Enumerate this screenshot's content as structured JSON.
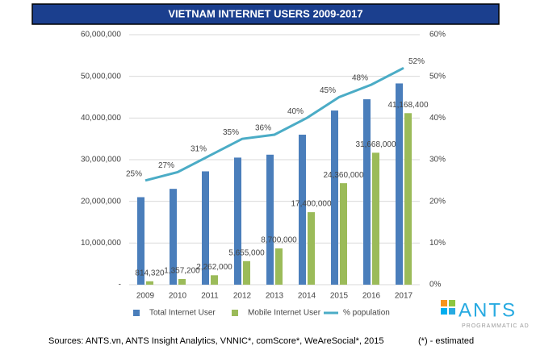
{
  "chart_data": {
    "type": "bar",
    "title": "VIETNAM INTERNET USERS 2009-2017",
    "categories": [
      "2009",
      "2010",
      "2011",
      "2012",
      "2013",
      "2014",
      "2015",
      "2016",
      "2017"
    ],
    "series": [
      {
        "name": "Total Internet User",
        "color": "#4a7ebb",
        "type": "bar",
        "values": [
          21000000,
          23000000,
          27200000,
          30500000,
          31200000,
          36000000,
          41800000,
          44500000,
          48300000
        ]
      },
      {
        "name": "Mobile Internet User",
        "color": "#9bbb59",
        "type": "bar",
        "values": [
          814320,
          1357200,
          2262000,
          5655000,
          8700000,
          17400000,
          24360000,
          31668000,
          41168400
        ],
        "value_labels": [
          "814,320",
          "1,357,200",
          "2,262,000",
          "5,655,000",
          "8,700,000",
          "17,400,000",
          "24,360,000",
          "31,668,000",
          "41,168,400"
        ]
      },
      {
        "name": "% population",
        "color": "#4bacc6",
        "type": "line",
        "axis": "y2",
        "values": [
          25,
          27,
          31,
          35,
          36,
          40,
          45,
          48,
          52
        ],
        "value_labels": [
          "25%",
          "27%",
          "31%",
          "35%",
          "36%",
          "40%",
          "45%",
          "48%",
          "52%"
        ]
      }
    ],
    "ylim": [
      0,
      60000000
    ],
    "yticks": [
      {
        "value": 0,
        "label": "-"
      },
      {
        "value": 10000000,
        "label": "10,000,000"
      },
      {
        "value": 20000000,
        "label": "20,000,000"
      },
      {
        "value": 30000000,
        "label": "30,000,000"
      },
      {
        "value": 40000000,
        "label": "40,000,000"
      },
      {
        "value": 50000000,
        "label": "50,000,000"
      },
      {
        "value": 60000000,
        "label": "60,000,000"
      }
    ],
    "y2lim": [
      0,
      60
    ],
    "y2ticks": [
      {
        "value": 0,
        "label": "0%"
      },
      {
        "value": 10,
        "label": "10%"
      },
      {
        "value": 20,
        "label": "20%"
      },
      {
        "value": 30,
        "label": "30%"
      },
      {
        "value": 40,
        "label": "40%"
      },
      {
        "value": 50,
        "label": "50%"
      },
      {
        "value": 60,
        "label": "60%"
      }
    ],
    "grid": true,
    "legend": "bottom",
    "source": "Sources: ANTS.vn, ANTS Insight Analytics, VNNIC*, comScore*, WeAreSocial*, 2015",
    "footnote": "(*) - estimated",
    "logo": {
      "name": "ANTS",
      "tagline": "PROGRAMMATIC AD"
    }
  }
}
